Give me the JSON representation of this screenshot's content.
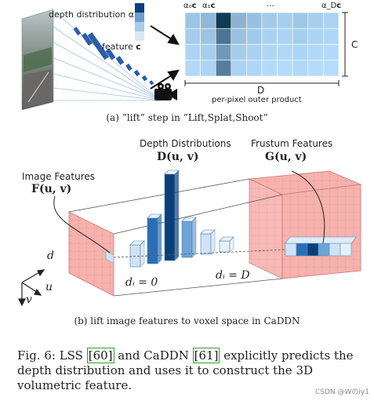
{
  "top_panel": {
    "depth_label": "depth distribution α",
    "feature_label": "feature",
    "feature_symbol": "c",
    "col_label_left_1": "α₀",
    "col_label_left_1_sym": "c",
    "col_label_left_2": "α₁",
    "col_label_left_2_sym": "c",
    "col_dots": "...",
    "col_label_right": "α_D",
    "col_label_right_sym": "c",
    "height_label": "C",
    "width_label": "D",
    "product_label": "per-pixel outer product",
    "caption": "(a) ”lift” step in ”Lift,Splat,Shoot”"
  },
  "bottom_panel": {
    "depth_dist_title": "Depth Distributions",
    "depth_dist_math": "D(u, v)",
    "frustum_title": "Frustum Features",
    "frustum_math": "G(u, v)",
    "image_feat_title": "Image Features",
    "image_feat_math": "F(u, v)",
    "axis_d": "d",
    "axis_u": "u",
    "axis_v": "v",
    "di_zero": "dᵢ = 0",
    "di_D": "dᵢ = D",
    "caption": "(b) lift image features to voxel space in CaDDN"
  },
  "figure_caption": {
    "prefix": "Fig. 6: LSS ",
    "ref1": "[60]",
    "middle": " and CaDDN ",
    "ref2": "[61]",
    "suffix": " explicitly predicts the depth distribution and uses it to construct the 3D volumetric feature."
  },
  "watermark": "CSDN @Wのiy1",
  "colors": {
    "dark_blue": "#0b3f7a",
    "mid_blue": "#2a6fb5",
    "light_blue": "#cfe3f5",
    "salmon": "#f6b2ad",
    "salmon_line": "#e07f7a"
  }
}
